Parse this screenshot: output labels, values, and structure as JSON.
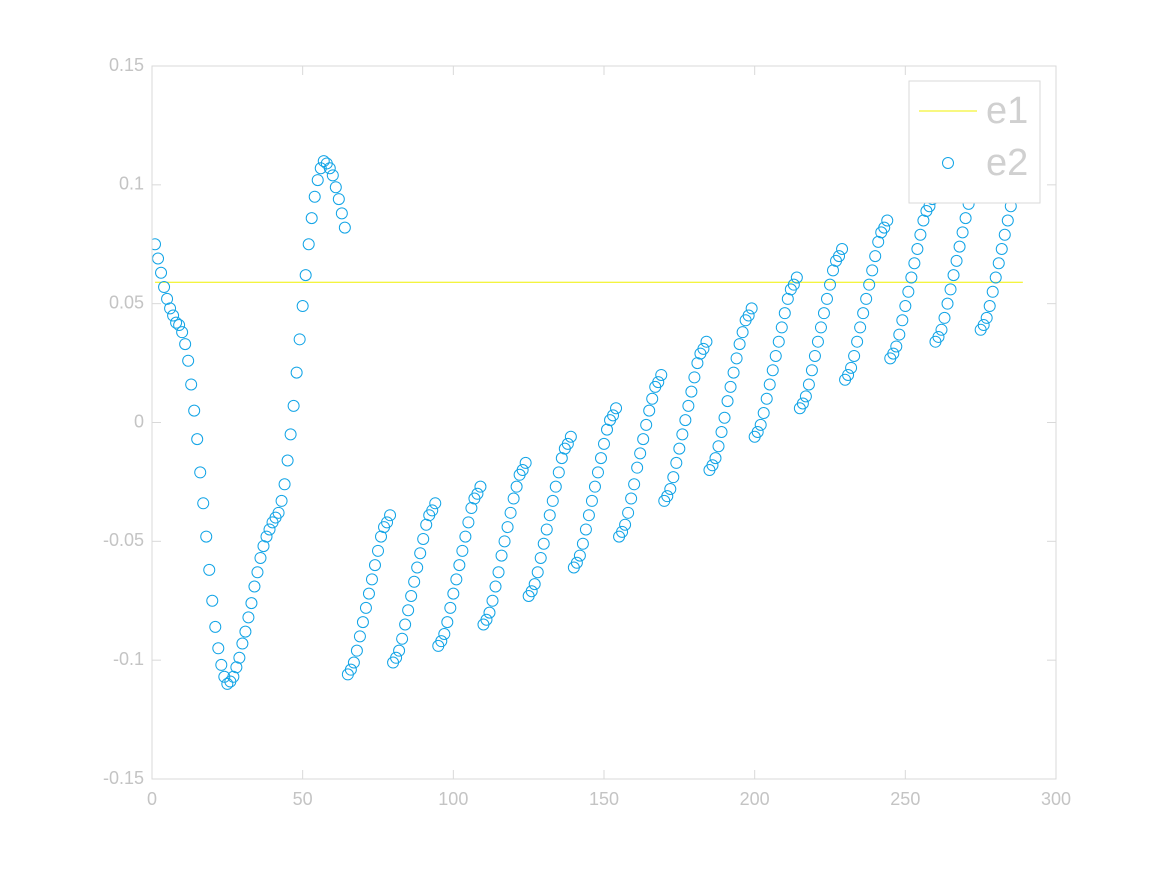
{
  "chart_data": {
    "type": "scatter",
    "xlim": [
      0,
      300
    ],
    "xticks": [
      0,
      50,
      100,
      150,
      200,
      250,
      300
    ],
    "ylim": [
      -0.15,
      0.15
    ],
    "yticks": [
      -0.15,
      -0.1,
      -0.05,
      0,
      0.05,
      0.1,
      0.15
    ],
    "grid": false,
    "legend": "northeast",
    "series": [
      {
        "name": "e1",
        "type": "line",
        "color": "#f0f000",
        "x": [
          1,
          289
        ],
        "values": [
          0.059,
          0.059
        ]
      },
      {
        "name": "e2",
        "type": "scatter",
        "color": "#12a4e6",
        "x": [
          1,
          2,
          3,
          4,
          5,
          6,
          7,
          8,
          9,
          10,
          11,
          12,
          13,
          14,
          15,
          16,
          17,
          18,
          19,
          20,
          21,
          22,
          23,
          24,
          25,
          26,
          27,
          28,
          29,
          30,
          31,
          32,
          33,
          34,
          35,
          36,
          37,
          38,
          39,
          40,
          41,
          42,
          43,
          44,
          45,
          46,
          47,
          48,
          49,
          50,
          51,
          52,
          53,
          54,
          55,
          56,
          57,
          58,
          59,
          60,
          61,
          62,
          63,
          64,
          65,
          66,
          67,
          68,
          69,
          70,
          71,
          72,
          73,
          74,
          75,
          76,
          77,
          78,
          79,
          80,
          81,
          82,
          83,
          84,
          85,
          86,
          87,
          88,
          89,
          90,
          91,
          92,
          93,
          94,
          95,
          96,
          97,
          98,
          99,
          100,
          101,
          102,
          103,
          104,
          105,
          106,
          107,
          108,
          109,
          110,
          111,
          112,
          113,
          114,
          115,
          116,
          117,
          118,
          119,
          120,
          121,
          122,
          123,
          124,
          125,
          126,
          127,
          128,
          129,
          130,
          131,
          132,
          133,
          134,
          135,
          136,
          137,
          138,
          139,
          140,
          141,
          142,
          143,
          144,
          145,
          146,
          147,
          148,
          149,
          150,
          151,
          152,
          153,
          154,
          155,
          156,
          157,
          158,
          159,
          160,
          161,
          162,
          163,
          164,
          165,
          166,
          167,
          168,
          169,
          170,
          171,
          172,
          173,
          174,
          175,
          176,
          177,
          178,
          179,
          180,
          181,
          182,
          183,
          184,
          185,
          186,
          187,
          188,
          189,
          190,
          191,
          192,
          193,
          194,
          195,
          196,
          197,
          198,
          199,
          200,
          201,
          202,
          203,
          204,
          205,
          206,
          207,
          208,
          209,
          210,
          211,
          212,
          213,
          214,
          215,
          216,
          217,
          218,
          219,
          220,
          221,
          222,
          223,
          224,
          225,
          226,
          227,
          228,
          229,
          230,
          231,
          232,
          233,
          234,
          235,
          236,
          237,
          238,
          239,
          240,
          241,
          242,
          243,
          244,
          245,
          246,
          247,
          248,
          249,
          250,
          251,
          252,
          253,
          254,
          255,
          256,
          257,
          258,
          259,
          260,
          261,
          262,
          263,
          264,
          265,
          266,
          267,
          268,
          269,
          270,
          271,
          272,
          273,
          274,
          275,
          276,
          277,
          278,
          279,
          280,
          281,
          282,
          283,
          284,
          285,
          286,
          287
        ],
        "values": [
          0.075,
          0.069,
          0.063,
          0.057,
          0.052,
          0.048,
          0.045,
          0.042,
          0.041,
          0.038,
          0.033,
          0.026,
          0.016,
          0.005,
          -0.007,
          -0.021,
          -0.034,
          -0.048,
          -0.062,
          -0.075,
          -0.086,
          -0.095,
          -0.102,
          -0.107,
          -0.11,
          -0.109,
          -0.107,
          -0.103,
          -0.099,
          -0.093,
          -0.088,
          -0.082,
          -0.076,
          -0.069,
          -0.063,
          -0.057,
          -0.052,
          -0.048,
          -0.045,
          -0.042,
          -0.04,
          -0.038,
          -0.033,
          -0.026,
          -0.016,
          -0.005,
          0.007,
          0.021,
          0.035,
          0.049,
          0.062,
          0.075,
          0.086,
          0.095,
          0.102,
          0.107,
          0.11,
          0.109,
          0.107,
          0.104,
          0.099,
          0.094,
          0.088,
          0.082,
          -0.106,
          -0.104,
          -0.101,
          -0.096,
          -0.09,
          -0.084,
          -0.078,
          -0.072,
          -0.066,
          -0.06,
          -0.054,
          -0.048,
          -0.044,
          -0.042,
          -0.039,
          -0.101,
          -0.099,
          -0.096,
          -0.091,
          -0.085,
          -0.079,
          -0.073,
          -0.067,
          -0.061,
          -0.055,
          -0.049,
          -0.043,
          -0.039,
          -0.037,
          -0.034,
          -0.094,
          -0.092,
          -0.089,
          -0.084,
          -0.078,
          -0.072,
          -0.066,
          -0.06,
          -0.054,
          -0.048,
          -0.042,
          -0.036,
          -0.032,
          -0.03,
          -0.027,
          -0.085,
          -0.083,
          -0.08,
          -0.075,
          -0.069,
          -0.063,
          -0.056,
          -0.05,
          -0.044,
          -0.038,
          -0.032,
          -0.027,
          -0.022,
          -0.02,
          -0.017,
          -0.073,
          -0.071,
          -0.068,
          -0.063,
          -0.057,
          -0.051,
          -0.045,
          -0.039,
          -0.033,
          -0.027,
          -0.021,
          -0.015,
          -0.011,
          -0.009,
          -0.006,
          -0.061,
          -0.059,
          -0.056,
          -0.051,
          -0.045,
          -0.039,
          -0.033,
          -0.027,
          -0.021,
          -0.015,
          -0.009,
          -0.003,
          0.001,
          0.003,
          0.006,
          -0.048,
          -0.046,
          -0.043,
          -0.038,
          -0.032,
          -0.026,
          -0.019,
          -0.013,
          -0.007,
          -0.001,
          0.005,
          0.01,
          0.015,
          0.017,
          0.02,
          -0.033,
          -0.031,
          -0.028,
          -0.023,
          -0.017,
          -0.011,
          -0.005,
          0.001,
          0.007,
          0.013,
          0.019,
          0.025,
          0.029,
          0.031,
          0.034,
          -0.02,
          -0.018,
          -0.015,
          -0.01,
          -0.004,
          0.002,
          0.009,
          0.015,
          0.021,
          0.027,
          0.033,
          0.038,
          0.043,
          0.045,
          0.048,
          -0.006,
          -0.004,
          -0.001,
          0.004,
          0.01,
          0.016,
          0.022,
          0.028,
          0.034,
          0.04,
          0.046,
          0.052,
          0.056,
          0.058,
          0.061,
          0.006,
          0.008,
          0.011,
          0.016,
          0.022,
          0.028,
          0.034,
          0.04,
          0.046,
          0.052,
          0.058,
          0.064,
          0.068,
          0.07,
          0.073,
          0.018,
          0.02,
          0.023,
          0.028,
          0.034,
          0.04,
          0.046,
          0.052,
          0.058,
          0.064,
          0.07,
          0.076,
          0.08,
          0.082,
          0.085,
          0.027,
          0.029,
          0.032,
          0.037,
          0.043,
          0.049,
          0.055,
          0.061,
          0.067,
          0.073,
          0.079,
          0.085,
          0.089,
          0.091,
          0.094,
          0.034,
          0.036,
          0.039,
          0.044,
          0.05,
          0.056,
          0.062,
          0.068,
          0.074,
          0.08,
          0.086,
          0.092,
          0.096,
          0.098,
          0.101,
          0.039,
          0.041,
          0.044,
          0.049,
          0.055,
          0.061,
          0.067,
          0.073,
          0.079,
          0.085,
          0.091,
          0.096,
          0.1
        ]
      }
    ]
  }
}
